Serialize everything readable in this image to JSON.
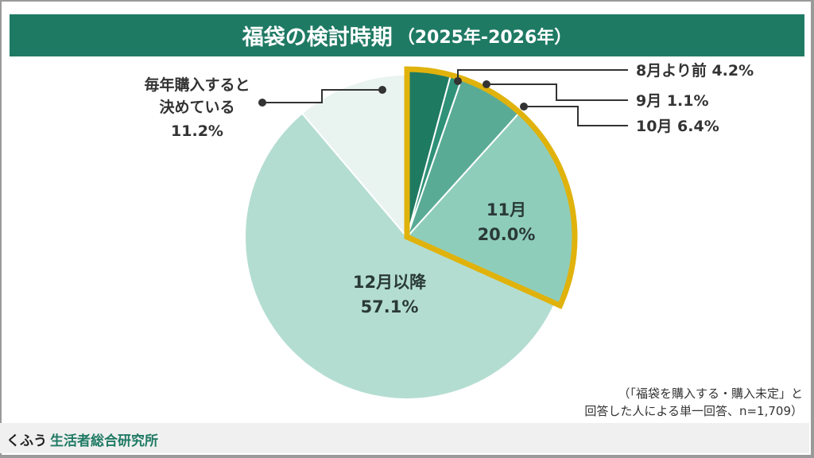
{
  "header": {
    "title": "福袋の検討時期",
    "subtitle": "（2025年-2026年）"
  },
  "chart_data": {
    "type": "pie",
    "title": "福袋の検討時期（2025年-2026年）",
    "start": "12 o'clock, clockwise",
    "slices": [
      {
        "label": "8月より前",
        "value": 4.2,
        "display": "8月より前 4.2%",
        "color": "#1f7a62",
        "highlight": true
      },
      {
        "label": "9月",
        "value": 1.1,
        "display": "9月 1.1%",
        "color": "#2f9178",
        "highlight": true
      },
      {
        "label": "10月",
        "value": 6.4,
        "display": "10月 6.4%",
        "color": "#5aab96",
        "highlight": true
      },
      {
        "label": "11月",
        "value": 20.0,
        "display": "20.0%",
        "color": "#8fcdbb",
        "highlight": true
      },
      {
        "label": "12月以降",
        "value": 57.1,
        "display": "57.1%",
        "color": "#b4ddd1",
        "highlight": false
      },
      {
        "label": "毎年購入すると決めている",
        "value": 11.2,
        "display": "11.2%",
        "color": "#e9f3f0",
        "highlight": false
      }
    ],
    "highlight_color": "#e0b20c",
    "inside_labels": {
      "nov": [
        "11月",
        "20.0%"
      ],
      "dec": [
        "12月以降",
        "57.1%"
      ]
    },
    "outside_label_every_year": [
      "毎年購入すると",
      "決めている",
      "11.2%"
    ]
  },
  "note": {
    "line1": "（「福袋を購入する・購入未定」と",
    "line2": "回答した人による単一回答、n=1,709）"
  },
  "footer": {
    "brand_a": "くふう",
    "brand_b": "生活者総合研究所"
  }
}
